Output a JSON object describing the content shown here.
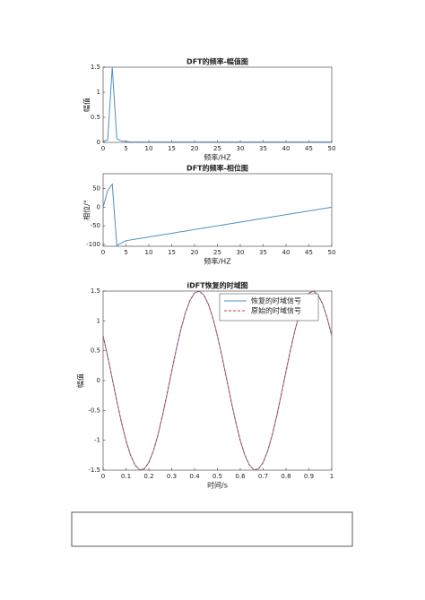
{
  "chart_data": [
    {
      "type": "line",
      "title": "DFT的频率-幅值图",
      "xlabel": "频率/HZ",
      "ylabel": "幅值",
      "x": [
        0,
        1,
        2,
        3,
        4,
        5,
        6,
        7,
        8,
        9,
        10,
        11,
        12,
        13,
        14,
        15,
        16,
        17,
        18,
        19,
        20,
        21,
        22,
        23,
        24,
        25,
        26,
        27,
        28,
        29,
        30,
        31,
        32,
        33,
        34,
        35,
        36,
        37,
        38,
        39,
        40,
        41,
        42,
        43,
        44,
        45,
        46,
        47,
        48,
        49,
        50
      ],
      "series": [
        {
          "color": "#4a90c8",
          "values": [
            0.02,
            0.05,
            1.5,
            0.07,
            0.03,
            0.02,
            0.01,
            0.01,
            0.01,
            0.01,
            0.01,
            0.01,
            0.01,
            0.01,
            0.01,
            0.01,
            0.01,
            0.01,
            0.01,
            0.01,
            0.01,
            0.01,
            0.01,
            0.01,
            0.01,
            0.01,
            0.01,
            0.01,
            0.01,
            0.01,
            0.01,
            0.01,
            0.01,
            0.01,
            0.01,
            0.01,
            0.01,
            0.01,
            0.01,
            0.01,
            0.01,
            0.01,
            0.01,
            0.01,
            0.01,
            0.01,
            0.01,
            0.01,
            0.01,
            0.01,
            0.01
          ]
        }
      ],
      "xlim": [
        0,
        50
      ],
      "xticks": [
        0,
        5,
        10,
        15,
        20,
        25,
        30,
        35,
        40,
        45,
        50
      ],
      "ylim": [
        0,
        1.5
      ],
      "yticks": [
        0,
        0.5,
        1,
        1.5
      ]
    },
    {
      "type": "line",
      "title": "DFT的频率-相位图",
      "xlabel": "频率/HZ",
      "ylabel": "相位/°",
      "x": [
        0,
        1,
        2,
        3,
        4,
        5,
        6,
        7,
        8,
        9,
        10,
        11,
        12,
        13,
        14,
        15,
        16,
        17,
        18,
        19,
        20,
        21,
        22,
        23,
        24,
        25,
        26,
        27,
        28,
        29,
        30,
        31,
        32,
        33,
        34,
        35,
        36,
        37,
        38,
        39,
        40,
        41,
        42,
        43,
        44,
        45,
        46,
        47,
        48,
        49,
        50
      ],
      "series": [
        {
          "color": "#4a90c8",
          "values": [
            0,
            45,
            62,
            -103,
            -96,
            -90,
            -88,
            -86,
            -84,
            -82,
            -80,
            -78,
            -76,
            -74,
            -72,
            -70,
            -68,
            -66,
            -64,
            -62,
            -60,
            -58,
            -56,
            -54,
            -52,
            -50,
            -48,
            -46,
            -44,
            -42,
            -40,
            -38,
            -36,
            -34,
            -32,
            -30,
            -28,
            -26,
            -24,
            -22,
            -20,
            -18,
            -16,
            -14,
            -12,
            -10,
            -8,
            -6,
            -4,
            -2,
            0
          ]
        }
      ],
      "xlim": [
        0,
        50
      ],
      "xticks": [
        0,
        5,
        10,
        15,
        20,
        25,
        30,
        35,
        40,
        45,
        50
      ],
      "ylim": [
        -105,
        90
      ],
      "yticks": [
        -100,
        -50,
        0,
        50
      ]
    },
    {
      "type": "line",
      "title": "iDFT恢复的时域图",
      "xlabel": "时间/s",
      "ylabel": "幅值",
      "legend": "northeast",
      "x": [
        0,
        0.02,
        0.04,
        0.06,
        0.08,
        0.1,
        0.12,
        0.14,
        0.16,
        0.18,
        0.2,
        0.22,
        0.24,
        0.26,
        0.28,
        0.3,
        0.32,
        0.34,
        0.36,
        0.38,
        0.4,
        0.42,
        0.44,
        0.46,
        0.48,
        0.5,
        0.52,
        0.54,
        0.56,
        0.58,
        0.6,
        0.62,
        0.64,
        0.66,
        0.68,
        0.7,
        0.72,
        0.74,
        0.76,
        0.78,
        0.8,
        0.82,
        0.84,
        0.86,
        0.88,
        0.9,
        0.92,
        0.94,
        0.96,
        0.98,
        1
      ],
      "series": [
        {
          "name": "恢复的时域信号",
          "color": "#4a90c8",
          "dash": false,
          "values": [
            0.75,
            0.403,
            0.031,
            -0.343,
            -0.695,
            -1.004,
            -1.249,
            -1.417,
            -1.495,
            -1.479,
            -1.37,
            -1.176,
            -0.907,
            -0.581,
            -0.219,
            0.157,
            0.523,
            0.856,
            1.136,
            1.344,
            1.467,
            1.499,
            1.436,
            1.283,
            1.05,
            0.75,
            0.403,
            0.031,
            -0.343,
            -0.695,
            -1.004,
            -1.249,
            -1.417,
            -1.495,
            -1.479,
            -1.37,
            -1.176,
            -0.907,
            -0.581,
            -0.219,
            0.157,
            0.523,
            0.856,
            1.136,
            1.344,
            1.467,
            1.499,
            1.436,
            1.283,
            1.05,
            0.75
          ]
        },
        {
          "name": "原始的时域信号",
          "color": "#d9363e",
          "dash": true,
          "values": [
            0.75,
            0.403,
            0.031,
            -0.343,
            -0.695,
            -1.004,
            -1.249,
            -1.417,
            -1.495,
            -1.479,
            -1.37,
            -1.176,
            -0.907,
            -0.581,
            -0.219,
            0.157,
            0.523,
            0.856,
            1.136,
            1.344,
            1.467,
            1.499,
            1.436,
            1.283,
            1.05,
            0.75,
            0.403,
            0.031,
            -0.343,
            -0.695,
            -1.004,
            -1.249,
            -1.417,
            -1.495,
            -1.479,
            -1.37,
            -1.176,
            -0.907,
            -0.581,
            -0.219,
            0.157,
            0.523,
            0.856,
            1.136,
            1.344,
            1.467,
            1.499,
            1.436,
            1.283,
            1.05,
            0.75
          ]
        }
      ],
      "xlim": [
        0,
        1
      ],
      "xticks": [
        0,
        0.1,
        0.2,
        0.3,
        0.4,
        0.5,
        0.6,
        0.7,
        0.8,
        0.9,
        1
      ],
      "ylim": [
        -1.5,
        1.5
      ],
      "yticks": [
        -1.5,
        -1,
        -0.5,
        0,
        0.5,
        1,
        1.5
      ]
    }
  ]
}
